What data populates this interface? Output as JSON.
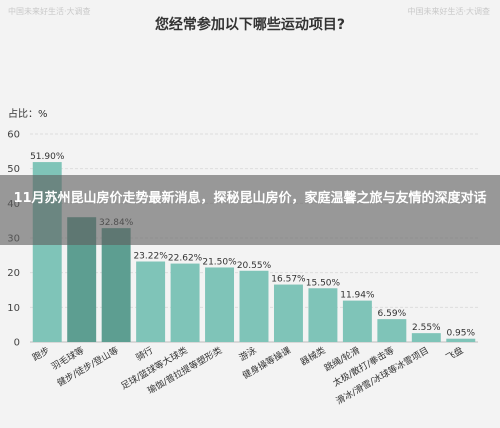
{
  "watermarks": {
    "left": "中国未来好生活·大调查",
    "right": "中国未来好生活·大调查"
  },
  "headline": "11月苏州昆山房价走势最新消息，探秘昆山房价，家庭温馨之旅与友情的深度对话",
  "chart_data": {
    "type": "bar",
    "title": "您经常参加以下哪些运动项目?",
    "ylabel": "占比：%",
    "ylim": [
      0,
      60
    ],
    "yticks": [
      0,
      10,
      20,
      30,
      40,
      50,
      60
    ],
    "categories": [
      "跑步",
      "羽毛球等",
      "健步/徒步/登山等",
      "骑行",
      "足球/篮球等大球类",
      "瑜伽/普拉提等塑形类",
      "游泳",
      "健身操等操课",
      "器械类",
      "跳绳/轮滑",
      "太极/散打/拳击等",
      "滑冰/滑雪/冰球等冰雪项目",
      "飞盘"
    ],
    "values": [
      51.9,
      36.0,
      32.84,
      23.22,
      22.62,
      21.5,
      20.55,
      16.57,
      15.5,
      11.94,
      6.59,
      2.55,
      0.95
    ],
    "data_labels": [
      "51.90%",
      "",
      "32.84%",
      "23.22%",
      "22.62%",
      "21.50%",
      "20.55%",
      "16.57%",
      "15.50%",
      "11.94%",
      "6.59%",
      "2.55%",
      "0.95%"
    ],
    "bar_colors": [
      "#7fc4b8",
      "#5d9e91",
      "#5d9e91",
      "#7fc4b8",
      "#7fc4b8",
      "#7fc4b8",
      "#7fc4b8",
      "#7fc4b8",
      "#7fc4b8",
      "#7fc4b8",
      "#7fc4b8",
      "#7fc4b8",
      "#7fc4b8"
    ],
    "grid": true,
    "legend": "none"
  }
}
